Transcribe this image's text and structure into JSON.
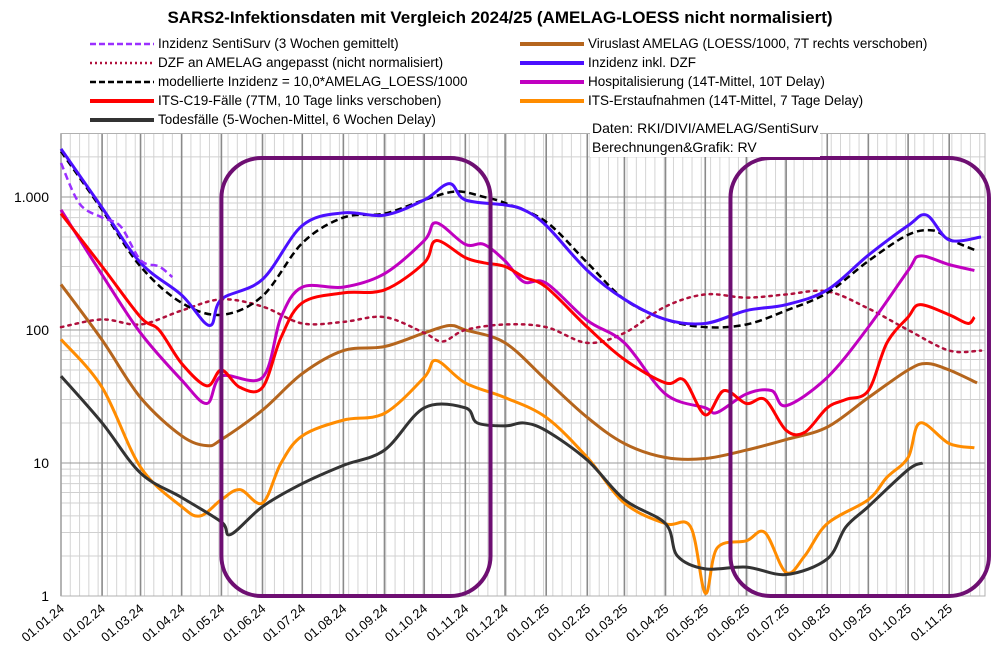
{
  "chart_data": {
    "type": "line",
    "title": "SARS2-Infektionsdaten mit Vergleich 2024/25 (AMELAG-LOESS nicht normalisiert)",
    "credit": [
      "Daten: RKI/DIVI/AMELAG/SentiSurv",
      "Berechnungen&Grafik: RV"
    ],
    "y_scale": "log",
    "ylim": [
      1,
      3000
    ],
    "xlim": [
      "2024-01-01",
      "2025-11-28"
    ],
    "y_ticks": [
      {
        "value": 1,
        "label": "1"
      },
      {
        "value": 10,
        "label": "10"
      },
      {
        "value": 100,
        "label": "100"
      },
      {
        "value": 1000,
        "label": "1.000"
      }
    ],
    "x_ticks": [
      "01.01.24",
      "01.02.24",
      "01.03.24",
      "01.04.24",
      "01.05.24",
      "01.06.24",
      "01.07.24",
      "01.08.24",
      "01.09.24",
      "01.10.24",
      "01.11.24",
      "01.12.24",
      "01.01.25",
      "01.02.25",
      "01.03.25",
      "01.04.25",
      "01.05.25",
      "01.06.25",
      "01.07.25",
      "01.08.25",
      "01.09.25",
      "01.10.25",
      "01.11.25"
    ],
    "grid": true,
    "legend_placement": "top",
    "highlight_color": "#6e0f72",
    "highlight_ranges": [
      [
        "2024-05-01",
        "2024-11-20"
      ],
      [
        "2025-05-20",
        "2025-12-01"
      ]
    ],
    "series": [
      {
        "name": "Inzidenz SentiSurv (3 Wochen gemittelt)",
        "color": "#9b30ff",
        "style": "dashed",
        "points": [
          [
            "2024-01-01",
            1800
          ],
          [
            "2024-01-15",
            890
          ],
          [
            "2024-02-01",
            700
          ],
          [
            "2024-02-15",
            600
          ],
          [
            "2024-03-01",
            335
          ],
          [
            "2024-03-15",
            300
          ],
          [
            "2024-03-25",
            250
          ]
        ]
      },
      {
        "name": "DZF an AMELAG angepasst (nicht normalisiert)",
        "color": "#b0103c",
        "style": "dotted",
        "points": [
          [
            "2024-01-01",
            105
          ],
          [
            "2024-02-01",
            120
          ],
          [
            "2024-03-01",
            110
          ],
          [
            "2024-04-01",
            140
          ],
          [
            "2024-05-01",
            170
          ],
          [
            "2024-06-01",
            150
          ],
          [
            "2024-07-01",
            112
          ],
          [
            "2024-08-01",
            115
          ],
          [
            "2024-09-01",
            125
          ],
          [
            "2024-10-01",
            95
          ],
          [
            "2024-10-15",
            82
          ],
          [
            "2024-11-01",
            100
          ],
          [
            "2024-12-01",
            110
          ],
          [
            "2025-01-01",
            105
          ],
          [
            "2025-02-01",
            80
          ],
          [
            "2025-03-01",
            95
          ],
          [
            "2025-04-01",
            150
          ],
          [
            "2025-05-01",
            185
          ],
          [
            "2025-06-01",
            175
          ],
          [
            "2025-07-01",
            185
          ],
          [
            "2025-08-01",
            195
          ],
          [
            "2025-09-01",
            145
          ],
          [
            "2025-10-01",
            100
          ],
          [
            "2025-11-01",
            70
          ],
          [
            "2025-11-25",
            70
          ]
        ]
      },
      {
        "name": "modellierte Inzidenz = 10,0*AMELAG_LOESS/1000",
        "color": "#000000",
        "style": "dashed",
        "points": [
          [
            "2024-01-01",
            2200
          ],
          [
            "2024-02-01",
            800
          ],
          [
            "2024-03-01",
            300
          ],
          [
            "2024-04-01",
            160
          ],
          [
            "2024-05-01",
            130
          ],
          [
            "2024-06-01",
            180
          ],
          [
            "2024-07-01",
            450
          ],
          [
            "2024-08-01",
            700
          ],
          [
            "2024-09-01",
            750
          ],
          [
            "2024-10-01",
            950
          ],
          [
            "2024-10-25",
            1100
          ],
          [
            "2024-11-15",
            1000
          ],
          [
            "2024-12-01",
            900
          ],
          [
            "2025-01-01",
            650
          ],
          [
            "2025-02-01",
            320
          ],
          [
            "2025-03-01",
            170
          ],
          [
            "2025-04-01",
            120
          ],
          [
            "2025-05-01",
            105
          ],
          [
            "2025-06-01",
            110
          ],
          [
            "2025-07-01",
            140
          ],
          [
            "2025-08-01",
            190
          ],
          [
            "2025-09-01",
            330
          ],
          [
            "2025-10-01",
            520
          ],
          [
            "2025-10-20",
            560
          ],
          [
            "2025-11-01",
            480
          ],
          [
            "2025-11-20",
            400
          ]
        ]
      },
      {
        "name": "ITS-C19-Fälle (7TM, 10 Tage links verschoben)",
        "color": "#ff0000",
        "style": "solid",
        "points": [
          [
            "2024-01-01",
            750
          ],
          [
            "2024-02-01",
            300
          ],
          [
            "2024-03-01",
            125
          ],
          [
            "2024-03-15",
            100
          ],
          [
            "2024-04-01",
            56
          ],
          [
            "2024-04-20",
            38
          ],
          [
            "2024-05-01",
            50
          ],
          [
            "2024-05-15",
            37
          ],
          [
            "2024-06-01",
            37
          ],
          [
            "2024-06-15",
            88
          ],
          [
            "2024-07-01",
            160
          ],
          [
            "2024-08-01",
            190
          ],
          [
            "2024-09-01",
            200
          ],
          [
            "2024-10-01",
            320
          ],
          [
            "2024-10-10",
            470
          ],
          [
            "2024-11-01",
            350
          ],
          [
            "2024-11-15",
            320
          ],
          [
            "2024-12-01",
            300
          ],
          [
            "2024-12-15",
            250
          ],
          [
            "2025-01-01",
            210
          ],
          [
            "2025-02-01",
            105
          ],
          [
            "2025-03-01",
            60
          ],
          [
            "2025-04-01",
            40
          ],
          [
            "2025-04-15",
            42
          ],
          [
            "2025-05-01",
            23
          ],
          [
            "2025-05-15",
            35
          ],
          [
            "2025-06-01",
            28
          ],
          [
            "2025-06-15",
            30
          ],
          [
            "2025-07-01",
            17.6
          ],
          [
            "2025-07-15",
            17
          ],
          [
            "2025-08-01",
            26
          ],
          [
            "2025-08-15",
            30
          ],
          [
            "2025-09-01",
            35
          ],
          [
            "2025-09-15",
            80
          ],
          [
            "2025-10-01",
            125
          ],
          [
            "2025-10-10",
            155
          ],
          [
            "2025-11-01",
            130
          ],
          [
            "2025-11-15",
            112
          ],
          [
            "2025-11-20",
            125
          ]
        ]
      },
      {
        "name": "Todesfälle (5-Wochen-Mittel, 6 Wochen Delay)",
        "color": "#333333",
        "style": "solid",
        "points": [
          [
            "2024-01-01",
            45
          ],
          [
            "2024-02-01",
            20
          ],
          [
            "2024-03-01",
            8.4
          ],
          [
            "2024-04-01",
            5.5
          ],
          [
            "2024-05-01",
            3.6
          ],
          [
            "2024-05-08",
            2.9
          ],
          [
            "2024-06-01",
            4.7
          ],
          [
            "2024-07-01",
            7
          ],
          [
            "2024-08-01",
            9.6
          ],
          [
            "2024-09-01",
            12.5
          ],
          [
            "2024-10-01",
            26
          ],
          [
            "2024-11-01",
            26
          ],
          [
            "2024-11-10",
            20
          ],
          [
            "2024-12-01",
            19
          ],
          [
            "2024-12-15",
            20
          ],
          [
            "2025-01-01",
            17.5
          ],
          [
            "2025-02-01",
            10.5
          ],
          [
            "2025-03-01",
            5.3
          ],
          [
            "2025-04-01",
            3.5
          ],
          [
            "2025-04-10",
            2
          ],
          [
            "2025-05-01",
            1.6
          ],
          [
            "2025-06-01",
            1.65
          ],
          [
            "2025-07-01",
            1.45
          ],
          [
            "2025-08-01",
            1.9
          ],
          [
            "2025-08-15",
            3.3
          ],
          [
            "2025-09-01",
            4.7
          ],
          [
            "2025-10-01",
            8.9
          ],
          [
            "2025-10-12",
            10
          ]
        ]
      },
      {
        "name": "Viruslast AMELAG (LOESS/1000, 7T rechts verschoben)",
        "color": "#b5651d",
        "style": "solid",
        "points": [
          [
            "2024-01-01",
            220
          ],
          [
            "2024-02-01",
            84
          ],
          [
            "2024-03-01",
            31
          ],
          [
            "2024-04-01",
            16
          ],
          [
            "2024-04-20",
            13.5
          ],
          [
            "2024-05-01",
            15
          ],
          [
            "2024-06-01",
            25
          ],
          [
            "2024-07-01",
            47
          ],
          [
            "2024-08-01",
            70
          ],
          [
            "2024-09-01",
            75
          ],
          [
            "2024-10-01",
            95
          ],
          [
            "2024-10-20",
            108
          ],
          [
            "2024-11-01",
            100
          ],
          [
            "2024-12-01",
            80
          ],
          [
            "2025-01-01",
            42
          ],
          [
            "2025-02-01",
            22
          ],
          [
            "2025-03-01",
            14
          ],
          [
            "2025-04-01",
            11
          ],
          [
            "2025-05-01",
            10.8
          ],
          [
            "2025-06-01",
            12.5
          ],
          [
            "2025-07-01",
            15
          ],
          [
            "2025-08-01",
            18.6
          ],
          [
            "2025-09-01",
            31
          ],
          [
            "2025-10-01",
            50
          ],
          [
            "2025-10-15",
            56
          ],
          [
            "2025-11-01",
            50
          ],
          [
            "2025-11-22",
            40
          ]
        ]
      },
      {
        "name": "Inzidenz inkl. DZF",
        "color": "#4b0fff",
        "style": "solid",
        "points": [
          [
            "2024-01-01",
            2300
          ],
          [
            "2024-02-01",
            830
          ],
          [
            "2024-03-01",
            320
          ],
          [
            "2024-04-01",
            183
          ],
          [
            "2024-04-22",
            108
          ],
          [
            "2024-05-01",
            170
          ],
          [
            "2024-06-01",
            240
          ],
          [
            "2024-07-01",
            610
          ],
          [
            "2024-08-01",
            760
          ],
          [
            "2024-09-01",
            730
          ],
          [
            "2024-10-01",
            950
          ],
          [
            "2024-10-20",
            1260
          ],
          [
            "2024-11-01",
            950
          ],
          [
            "2024-12-01",
            870
          ],
          [
            "2024-12-15",
            800
          ],
          [
            "2025-01-01",
            610
          ],
          [
            "2025-02-01",
            280
          ],
          [
            "2025-03-01",
            170
          ],
          [
            "2025-04-01",
            120
          ],
          [
            "2025-05-01",
            112
          ],
          [
            "2025-06-01",
            140
          ],
          [
            "2025-07-01",
            155
          ],
          [
            "2025-08-01",
            200
          ],
          [
            "2025-09-01",
            365
          ],
          [
            "2025-10-01",
            610
          ],
          [
            "2025-10-15",
            730
          ],
          [
            "2025-11-01",
            475
          ],
          [
            "2025-11-25",
            500
          ]
        ]
      },
      {
        "name": "Hospitalisierung (14T-Mittel, 10T Delay)",
        "color": "#c000c0",
        "style": "solid",
        "points": [
          [
            "2024-01-01",
            800
          ],
          [
            "2024-02-01",
            260
          ],
          [
            "2024-03-01",
            95
          ],
          [
            "2024-04-01",
            42
          ],
          [
            "2024-04-20",
            28
          ],
          [
            "2024-05-01",
            45
          ],
          [
            "2024-06-01",
            44
          ],
          [
            "2024-06-15",
            125
          ],
          [
            "2024-07-01",
            210
          ],
          [
            "2024-08-01",
            210
          ],
          [
            "2024-09-01",
            265
          ],
          [
            "2024-10-01",
            470
          ],
          [
            "2024-10-10",
            640
          ],
          [
            "2024-11-01",
            440
          ],
          [
            "2024-11-15",
            440
          ],
          [
            "2024-12-01",
            330
          ],
          [
            "2024-12-15",
            230
          ],
          [
            "2025-01-01",
            225
          ],
          [
            "2025-02-01",
            118
          ],
          [
            "2025-03-01",
            80
          ],
          [
            "2025-04-01",
            33
          ],
          [
            "2025-05-01",
            26
          ],
          [
            "2025-05-10",
            24
          ],
          [
            "2025-06-01",
            33
          ],
          [
            "2025-06-20",
            35
          ],
          [
            "2025-07-01",
            27
          ],
          [
            "2025-08-01",
            44
          ],
          [
            "2025-09-01",
            105
          ],
          [
            "2025-10-01",
            280
          ],
          [
            "2025-10-10",
            360
          ],
          [
            "2025-11-01",
            310
          ],
          [
            "2025-11-20",
            280
          ]
        ]
      },
      {
        "name": "ITS-Erstaufnahmen (14T-Mittel, 7 Tage Delay)",
        "color": "#ff8c00",
        "style": "solid",
        "points": [
          [
            "2024-01-01",
            85
          ],
          [
            "2024-02-01",
            37
          ],
          [
            "2024-03-01",
            9.3
          ],
          [
            "2024-04-01",
            4.7
          ],
          [
            "2024-04-15",
            4
          ],
          [
            "2024-05-01",
            5.3
          ],
          [
            "2024-05-15",
            6.3
          ],
          [
            "2024-06-01",
            5
          ],
          [
            "2024-06-15",
            10
          ],
          [
            "2024-07-01",
            16
          ],
          [
            "2024-08-01",
            21
          ],
          [
            "2024-09-01",
            23.6
          ],
          [
            "2024-10-01",
            44
          ],
          [
            "2024-10-10",
            59
          ],
          [
            "2024-11-01",
            40
          ],
          [
            "2024-12-01",
            31
          ],
          [
            "2025-01-01",
            22
          ],
          [
            "2025-02-01",
            11
          ],
          [
            "2025-03-01",
            5
          ],
          [
            "2025-04-01",
            3.5
          ],
          [
            "2025-04-20",
            3.3
          ],
          [
            "2025-05-01",
            1.05
          ],
          [
            "2025-05-10",
            2.3
          ],
          [
            "2025-06-01",
            2.6
          ],
          [
            "2025-06-15",
            3
          ],
          [
            "2025-07-01",
            1.5
          ],
          [
            "2025-07-15",
            2
          ],
          [
            "2025-08-01",
            3.5
          ],
          [
            "2025-09-01",
            5.3
          ],
          [
            "2025-09-15",
            7.8
          ],
          [
            "2025-10-01",
            11
          ],
          [
            "2025-10-10",
            20
          ],
          [
            "2025-11-01",
            14
          ],
          [
            "2025-11-20",
            13
          ]
        ]
      }
    ]
  }
}
